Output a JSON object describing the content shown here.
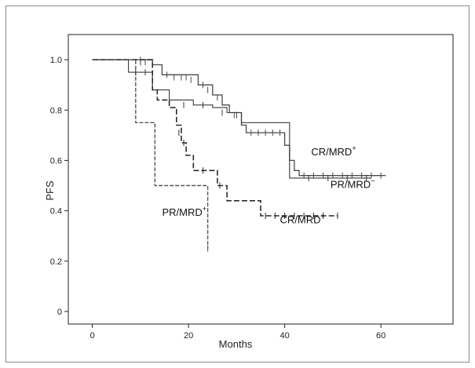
{
  "chart_data": {
    "type": "line",
    "title": "",
    "xlabel": "Months",
    "ylabel": "PFS",
    "xlim": [
      -5,
      75
    ],
    "ylim": [
      -0.05,
      1.1
    ],
    "xticks": [
      0,
      20,
      40,
      60
    ],
    "xtick_labels": [
      "0",
      "20",
      "40",
      "60"
    ],
    "yticks": [
      0.0,
      0.2,
      0.4,
      0.6,
      0.8,
      1.0
    ],
    "ytick_labels": [
      "0",
      "0.2",
      "0.4",
      "0.6",
      "0.8",
      "1.0"
    ],
    "grid": false,
    "series": [
      {
        "name": "CR/MRD-",
        "label_parts": [
          "CR/MRD",
          "−"
        ],
        "color": "#4a4a4a",
        "dash": "",
        "width": 1.3,
        "steps": [
          [
            0,
            1.0
          ],
          [
            12.5,
            0.98
          ],
          [
            14.5,
            0.94
          ],
          [
            22,
            0.9
          ],
          [
            25,
            0.86
          ],
          [
            27,
            0.82
          ],
          [
            28.5,
            0.79
          ],
          [
            31,
            0.74
          ],
          [
            32,
            0.71
          ],
          [
            40,
            0.66
          ],
          [
            41,
            0.6
          ],
          [
            42,
            0.56
          ],
          [
            43,
            0.54
          ],
          [
            61,
            0.54
          ]
        ],
        "censored": [
          [
            10,
            0.99
          ],
          [
            11,
            0.99
          ],
          [
            15.5,
            0.94
          ],
          [
            17,
            0.93
          ],
          [
            18.5,
            0.93
          ],
          [
            19.5,
            0.93
          ],
          [
            20.5,
            0.92
          ],
          [
            23,
            0.9
          ],
          [
            24,
            0.88
          ],
          [
            26,
            0.85
          ],
          [
            29.5,
            0.78
          ],
          [
            33,
            0.71
          ],
          [
            34.5,
            0.71
          ],
          [
            36,
            0.71
          ],
          [
            37.5,
            0.71
          ],
          [
            39,
            0.71
          ],
          [
            44,
            0.54
          ],
          [
            46,
            0.54
          ],
          [
            48,
            0.54
          ],
          [
            50,
            0.54
          ],
          [
            52,
            0.54
          ],
          [
            54,
            0.54
          ],
          [
            56,
            0.54
          ],
          [
            58,
            0.54
          ],
          [
            60,
            0.54
          ]
        ]
      },
      {
        "name": "PR/MRD-",
        "label_parts": [
          "PR/MRD",
          "−"
        ],
        "color": "#3a3a3a",
        "dash": "",
        "width": 1.1,
        "steps": [
          [
            0,
            1.0
          ],
          [
            7.5,
            0.95
          ],
          [
            12.5,
            0.88
          ],
          [
            16,
            0.84
          ],
          [
            21,
            0.82
          ],
          [
            25,
            0.81
          ],
          [
            28,
            0.79
          ],
          [
            31,
            0.75
          ],
          [
            41,
            0.53
          ],
          [
            58,
            0.53
          ]
        ],
        "censored": [
          [
            9,
            0.95
          ],
          [
            11,
            0.95
          ],
          [
            19,
            0.82
          ],
          [
            23,
            0.82
          ],
          [
            27,
            0.79
          ],
          [
            30,
            0.78
          ],
          [
            45,
            0.53
          ],
          [
            49,
            0.53
          ],
          [
            53,
            0.53
          ],
          [
            57,
            0.53
          ]
        ]
      },
      {
        "name": "CR/MRD+",
        "label_parts": [
          "CR/MRD",
          "+"
        ],
        "color": "#2b2b2b",
        "dash": "7 3",
        "width": 1.6,
        "steps": [
          [
            0,
            1.0
          ],
          [
            12.5,
            0.88
          ],
          [
            13.5,
            0.84
          ],
          [
            16,
            0.81
          ],
          [
            17.5,
            0.74
          ],
          [
            18.5,
            0.67
          ],
          [
            19.5,
            0.62
          ],
          [
            21,
            0.56
          ],
          [
            26,
            0.5
          ],
          [
            28,
            0.44
          ],
          [
            35,
            0.38
          ],
          [
            51,
            0.38
          ]
        ],
        "censored": [
          [
            18,
            0.71
          ],
          [
            19,
            0.67
          ],
          [
            23,
            0.56
          ],
          [
            26.5,
            0.5
          ],
          [
            36,
            0.38
          ],
          [
            38,
            0.38
          ],
          [
            40,
            0.38
          ],
          [
            42,
            0.38
          ],
          [
            44,
            0.38
          ],
          [
            46,
            0.38
          ],
          [
            48,
            0.38
          ],
          [
            51,
            0.38
          ]
        ]
      },
      {
        "name": "PR/MRD+",
        "label_parts": [
          "PR/MRD",
          "+"
        ],
        "color": "#555555",
        "dash": "5 2",
        "width": 1.4,
        "steps": [
          [
            0,
            1.0
          ],
          [
            9,
            0.75
          ],
          [
            13,
            0.5
          ],
          [
            24,
            0.25
          ]
        ],
        "censored": [
          [
            10,
            1.0
          ],
          [
            24,
            0.25
          ]
        ]
      }
    ],
    "annotations": [
      {
        "series": "CR/MRD+",
        "text_parts": [
          "CR/MRD",
          "+"
        ],
        "x": 45.5,
        "y": 0.62
      },
      {
        "series": "PR/MRD-",
        "text_parts": [
          "PR/MRD",
          "−"
        ],
        "x": 49.5,
        "y": 0.49
      },
      {
        "series": "CR/MRD+",
        "text_parts": [
          "CR/MRD",
          "+"
        ],
        "x": 39,
        "y": 0.35
      },
      {
        "series": "PR/MRD+",
        "text_parts": [
          "PR/MRD",
          "+"
        ],
        "x": 14.5,
        "y": 0.38
      }
    ]
  }
}
